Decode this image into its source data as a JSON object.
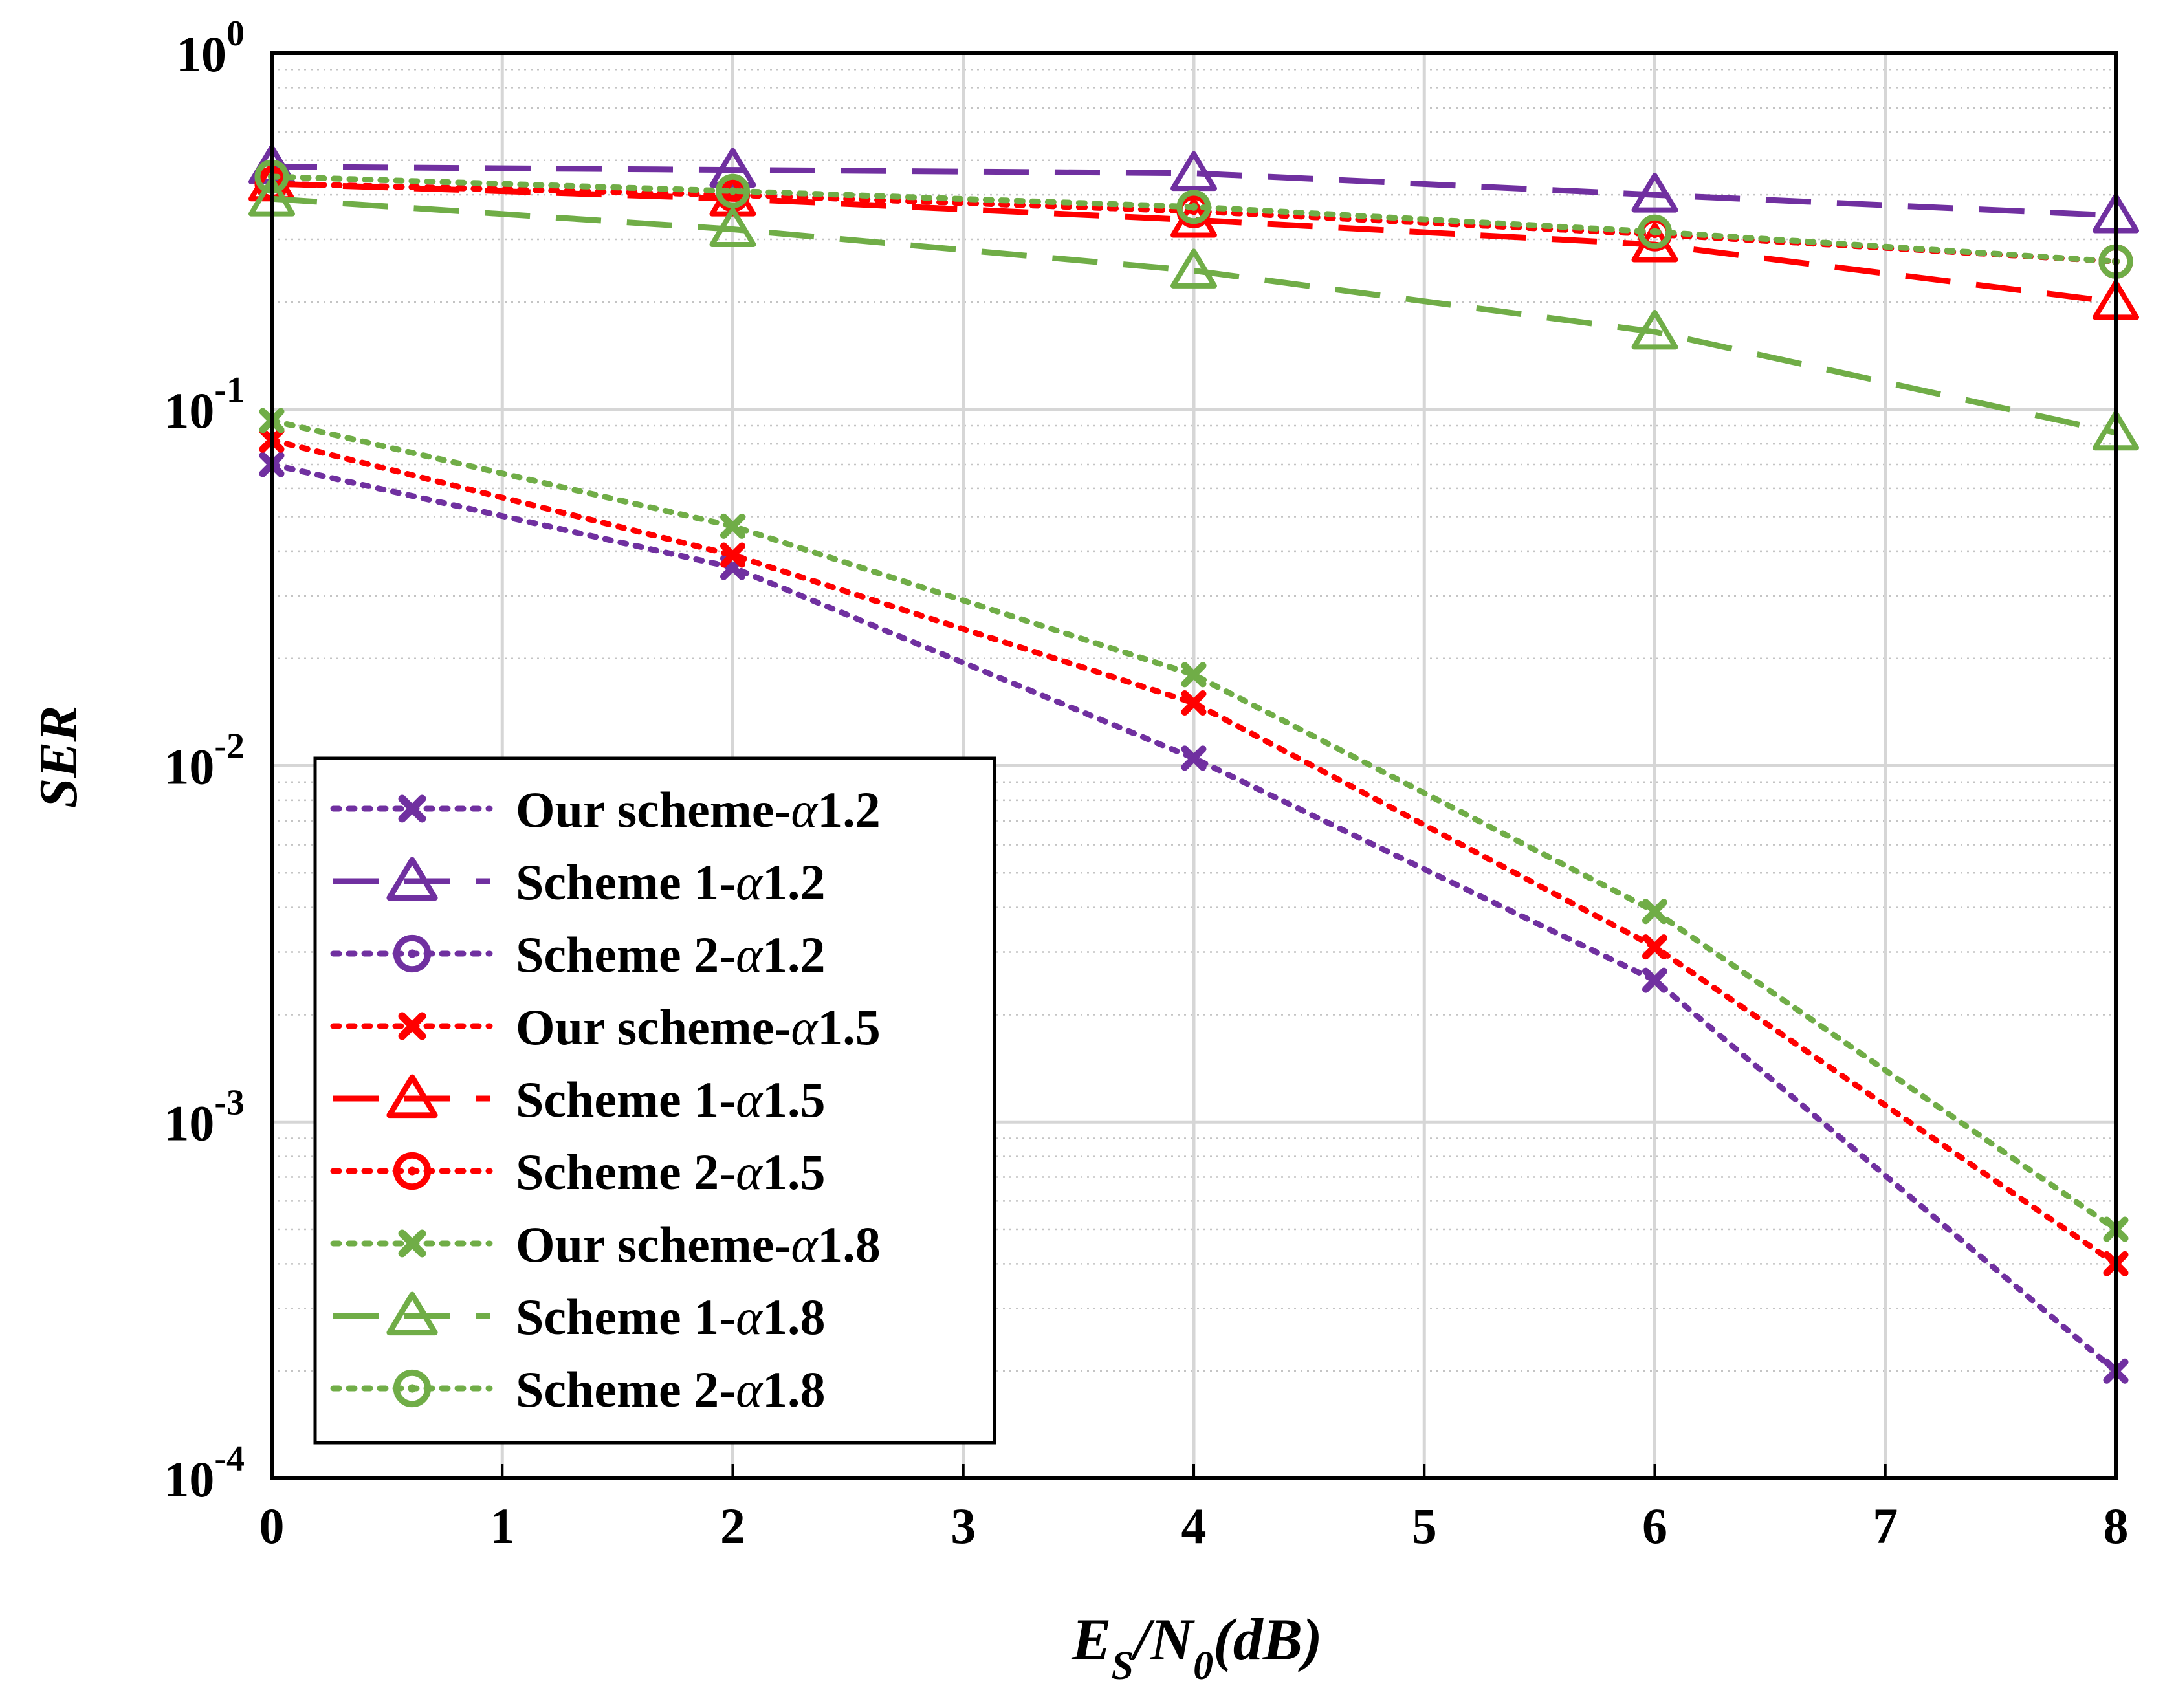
{
  "chart_data": {
    "type": "line",
    "title": "",
    "xlabel": "E_S/N_0(dB)",
    "xlabel_parts": {
      "E": "E",
      "S": "S",
      "slash": "/",
      "N": "N",
      "zero": "0",
      "dB": "(dB)"
    },
    "ylabel": "SER",
    "yscale": "log",
    "xlim": [
      0,
      8
    ],
    "ylim": [
      0.0001,
      1
    ],
    "grid": true,
    "x_ticks": [
      "0",
      "1",
      "2",
      "3",
      "4",
      "5",
      "6",
      "7",
      "8"
    ],
    "y_ticks": [
      {
        "base": "10",
        "exp": "0",
        "value": 1
      },
      {
        "base": "10",
        "exp": "-1",
        "value": 0.1
      },
      {
        "base": "10",
        "exp": "-2",
        "value": 0.01
      },
      {
        "base": "10",
        "exp": "-3",
        "value": 0.001
      },
      {
        "base": "10",
        "exp": "-4",
        "value": 0.0001
      }
    ],
    "legend_position": "bottom-left",
    "x": [
      0,
      2,
      4,
      6,
      8
    ],
    "series": [
      {
        "name": "Our scheme-α1.2",
        "legend_main": "Our scheme-",
        "legend_alpha": "α",
        "legend_value": "1.2",
        "color": "#7030A0",
        "style": "dotted",
        "marker": "x",
        "values": [
          0.07,
          0.036,
          0.0105,
          0.0025,
          0.0002
        ]
      },
      {
        "name": "Scheme 1-α1.2",
        "legend_main": "Scheme 1-",
        "legend_alpha": "α",
        "legend_value": "1.2",
        "color": "#7030A0",
        "style": "dashed",
        "marker": "triangle",
        "values": [
          0.48,
          0.47,
          0.46,
          0.4,
          0.35
        ]
      },
      {
        "name": "Scheme 2-α1.2",
        "legend_main": "Scheme 2-",
        "legend_alpha": "α",
        "legend_value": "1.2",
        "color": "#7030A0",
        "style": "dotted",
        "marker": "circle",
        "values": [
          0.43,
          0.4,
          0.36,
          0.31,
          0.26
        ]
      },
      {
        "name": "Our scheme-α1.5",
        "legend_main": "Our scheme-",
        "legend_alpha": "α",
        "legend_value": "1.5",
        "color": "#FF0000",
        "style": "dotted",
        "marker": "x",
        "values": [
          0.082,
          0.039,
          0.015,
          0.0031,
          0.0004
        ]
      },
      {
        "name": "Scheme 1-α1.5",
        "legend_main": "Scheme 1-",
        "legend_alpha": "α",
        "legend_value": "1.5",
        "color": "#FF0000",
        "style": "dashed",
        "marker": "triangle",
        "values": [
          0.43,
          0.39,
          0.34,
          0.29,
          0.2
        ]
      },
      {
        "name": "Scheme 2-α1.5",
        "legend_main": "Scheme 2-",
        "legend_alpha": "α",
        "legend_value": "1.5",
        "color": "#FF0000",
        "style": "dotted",
        "marker": "circle",
        "values": [
          0.43,
          0.4,
          0.36,
          0.31,
          0.26
        ]
      },
      {
        "name": "Our scheme-α1.8",
        "legend_main": "Our scheme-",
        "legend_alpha": "α",
        "legend_value": "1.8",
        "color": "#70AD47",
        "style": "dotted",
        "marker": "x",
        "values": [
          0.093,
          0.047,
          0.018,
          0.0039,
          0.0005
        ]
      },
      {
        "name": "Scheme 1-α1.8",
        "legend_main": "Scheme 1-",
        "legend_alpha": "α",
        "legend_value": "1.8",
        "color": "#70AD47",
        "style": "dashed",
        "marker": "triangle",
        "values": [
          0.39,
          0.32,
          0.245,
          0.165,
          0.086
        ]
      },
      {
        "name": "Scheme 2-α1.8",
        "legend_main": "Scheme 2-",
        "legend_alpha": "α",
        "legend_value": "1.8",
        "color": "#70AD47",
        "style": "dotted",
        "marker": "circle",
        "values": [
          0.45,
          0.41,
          0.37,
          0.315,
          0.26
        ]
      }
    ]
  }
}
